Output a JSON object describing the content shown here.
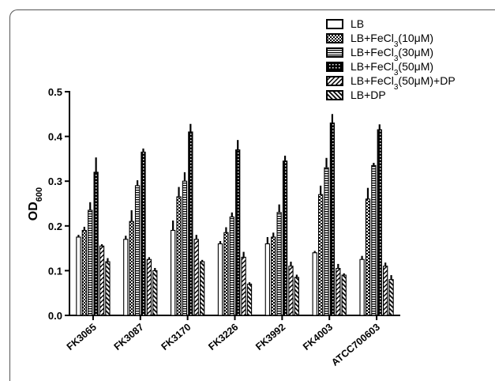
{
  "chart_data": {
    "type": "bar",
    "ylabel": "OD",
    "ylabel_subscript": "600",
    "ylim": [
      0,
      0.5
    ],
    "yticks": [
      "0.0",
      "0.1",
      "0.2",
      "0.3",
      "0.4",
      "0.5"
    ],
    "categories": [
      "FK3065",
      "FK3087",
      "FK3170",
      "FK3226",
      "FK3992",
      "FK4003",
      "ATCC700603"
    ],
    "error_bars": true,
    "legend_position": "top-right",
    "series": [
      {
        "name": "LB",
        "legend": {
          "pre": "LB",
          "sub": "",
          "post": ""
        },
        "pattern": "white",
        "values": [
          0.175,
          0.17,
          0.19,
          0.16,
          0.16,
          0.14,
          0.125
        ],
        "errors": [
          0.005,
          0.008,
          0.022,
          0.006,
          0.015,
          0.004,
          0.008
        ]
      },
      {
        "name": "LB+FeCl3(10μM)",
        "legend": {
          "pre": "LB+FeCl",
          "sub": "3",
          "post": "(10μM)"
        },
        "pattern": "checker",
        "values": [
          0.19,
          0.21,
          0.265,
          0.185,
          0.175,
          0.27,
          0.26
        ],
        "errors": [
          0.008,
          0.025,
          0.022,
          0.012,
          0.01,
          0.02,
          0.025
        ]
      },
      {
        "name": "LB+FeCl3(30μM)",
        "legend": {
          "pre": "LB+FeCl",
          "sub": "3",
          "post": "(30μM)"
        },
        "pattern": "hlines",
        "values": [
          0.235,
          0.29,
          0.3,
          0.22,
          0.23,
          0.33,
          0.335
        ],
        "errors": [
          0.018,
          0.012,
          0.02,
          0.01,
          0.018,
          0.022,
          0.006
        ]
      },
      {
        "name": "LB+FeCl3(50μM)",
        "legend": {
          "pre": "LB+FeCl",
          "sub": "3",
          "post": "(50μM)"
        },
        "pattern": "dots",
        "values": [
          0.32,
          0.365,
          0.41,
          0.37,
          0.345,
          0.43,
          0.415
        ],
        "errors": [
          0.033,
          0.008,
          0.018,
          0.022,
          0.012,
          0.02,
          0.012
        ]
      },
      {
        "name": "LB+FeCl3(50μM)+DP",
        "legend": {
          "pre": "LB+FeCl",
          "sub": "3",
          "post": "(50μM)+DP"
        },
        "pattern": "diag",
        "values": [
          0.155,
          0.125,
          0.17,
          0.13,
          0.11,
          0.105,
          0.11
        ],
        "errors": [
          0.004,
          0.005,
          0.01,
          0.012,
          0.01,
          0.01,
          0.008
        ]
      },
      {
        "name": "LB+DP",
        "legend": {
          "pre": "LB+DP",
          "sub": "",
          "post": ""
        },
        "pattern": "backdiag",
        "values": [
          0.12,
          0.1,
          0.12,
          0.07,
          0.085,
          0.09,
          0.08
        ],
        "errors": [
          0.008,
          0.006,
          0.004,
          0.004,
          0.006,
          0.004,
          0.01
        ]
      }
    ]
  }
}
